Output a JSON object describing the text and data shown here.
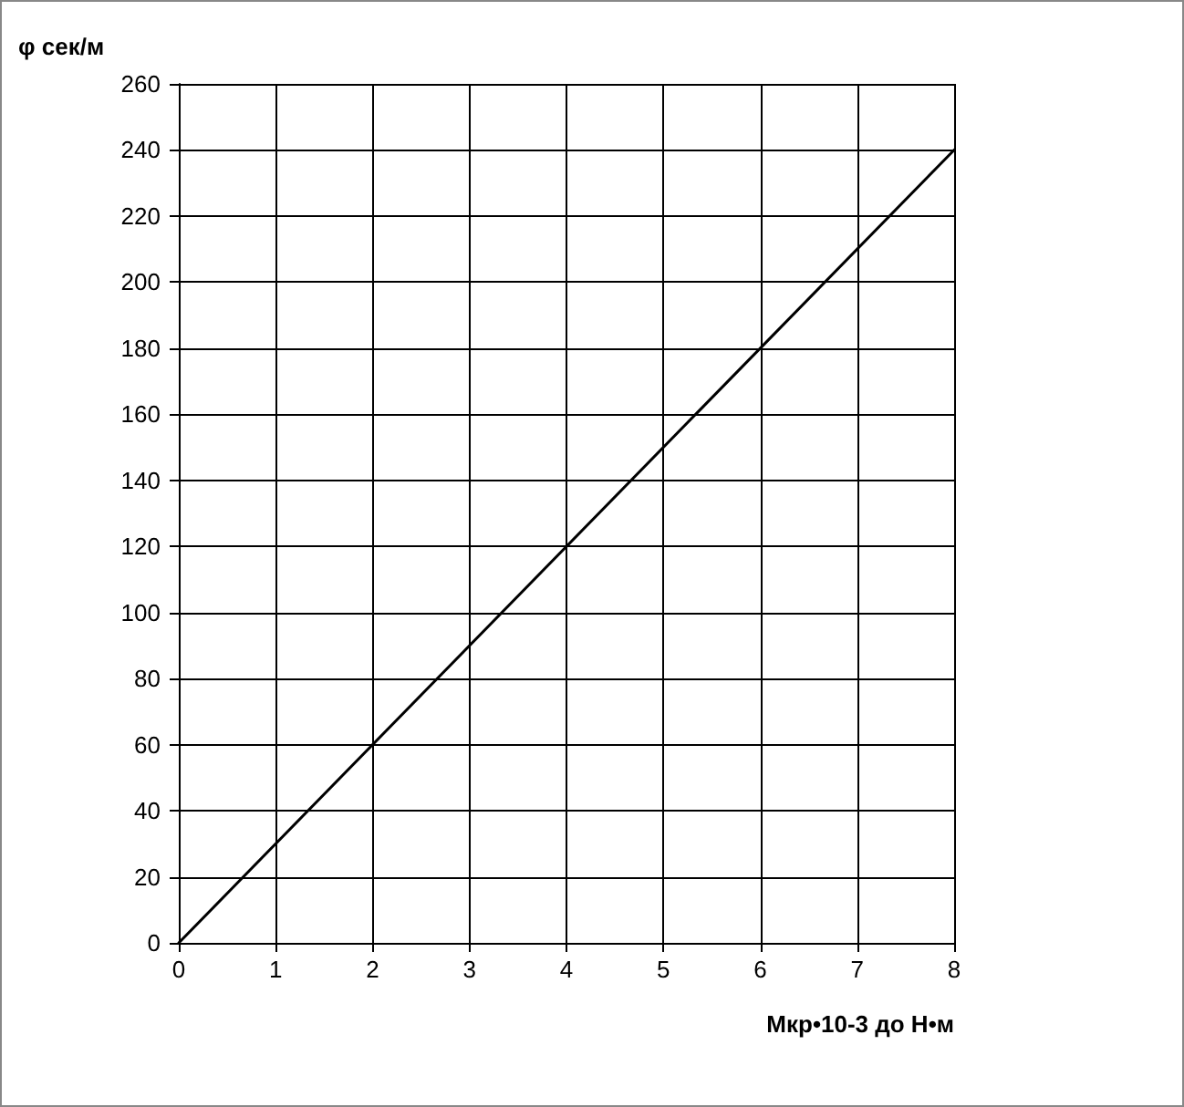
{
  "chart_data": {
    "type": "line",
    "xlabel": "Мкр•10-3 до Н•м",
    "ylabel": "φ сек/м",
    "x": [
      0,
      8
    ],
    "series": [
      {
        "color": "#000000",
        "values": [
          0,
          240
        ]
      }
    ],
    "xlim": [
      0,
      8
    ],
    "xticks": [
      0,
      1,
      2,
      3,
      4,
      5,
      6,
      7,
      8
    ],
    "ylim": [
      0,
      260
    ],
    "yticks": [
      0,
      20,
      40,
      60,
      80,
      100,
      120,
      140,
      160,
      180,
      200,
      220,
      240,
      260
    ],
    "grid": true,
    "marker": "none",
    "line_style": "solid"
  }
}
